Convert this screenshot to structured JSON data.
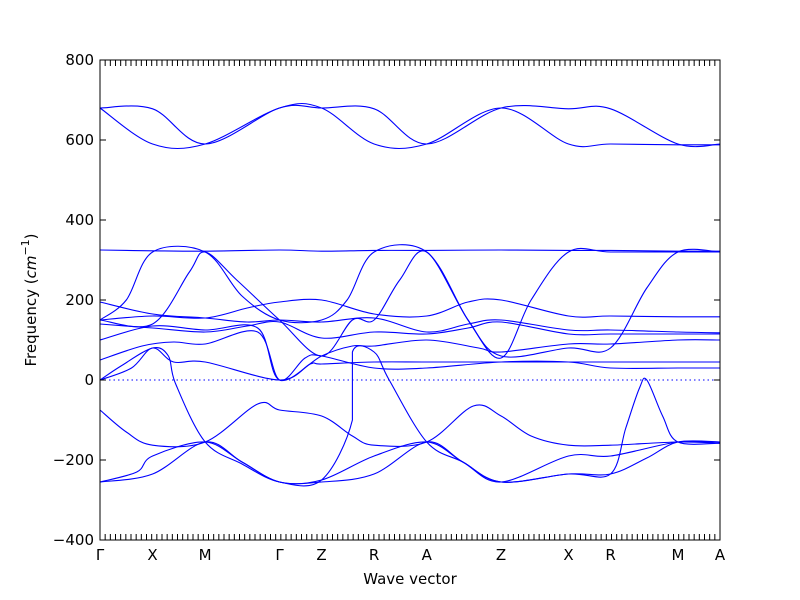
{
  "chart_data": {
    "type": "line",
    "title": "",
    "xlabel": "Wave vector",
    "ylabel": "Frequency ($cm^{-1}$)",
    "ylim": [
      -400,
      800
    ],
    "yticks": [
      -400,
      -200,
      0,
      200,
      400,
      600,
      800
    ],
    "grid": false,
    "series_color": "#0000ff",
    "zero_line": {
      "y": 0,
      "style": "dotted",
      "color": "#0000ff"
    },
    "kpoints": [
      {
        "label": "Γ",
        "x": 0.0
      },
      {
        "label": "X",
        "x": 0.5
      },
      {
        "label": "M",
        "x": 1.0
      },
      {
        "label": "Γ",
        "x": 1.707
      },
      {
        "label": "Z",
        "x": 2.107
      },
      {
        "label": "R",
        "x": 2.607
      },
      {
        "label": "A",
        "x": 3.107
      },
      {
        "label": "Z",
        "x": 3.814
      },
      {
        "label": "X",
        "x": 4.455
      },
      {
        "label": "R",
        "x": 4.855
      },
      {
        "label": "M",
        "x": 5.496
      },
      {
        "label": "A",
        "x": 5.896
      }
    ],
    "series": [
      {
        "values": [
          [
            0,
            -255
          ],
          [
            0.5,
            -235
          ],
          [
            1.0,
            -155
          ],
          [
            1.35,
            -205
          ],
          [
            1.707,
            -255
          ],
          [
            2.107,
            -255
          ],
          [
            2.607,
            -235
          ],
          [
            3.107,
            -155
          ],
          [
            3.45,
            -205
          ],
          [
            3.814,
            -255
          ],
          [
            4.455,
            -235
          ],
          [
            4.855,
            -235
          ],
          [
            5.2,
            -195
          ],
          [
            5.496,
            -155
          ],
          [
            5.896,
            -155
          ]
        ]
      },
      {
        "values": [
          [
            0,
            -255
          ],
          [
            0.35,
            -230
          ],
          [
            0.5,
            -190
          ],
          [
            1.0,
            -155
          ],
          [
            1.35,
            -205
          ],
          [
            1.707,
            -255
          ],
          [
            2.107,
            -250
          ],
          [
            2.607,
            -190
          ],
          [
            3.107,
            -155
          ],
          [
            3.45,
            -205
          ],
          [
            3.814,
            -255
          ],
          [
            4.455,
            -190
          ],
          [
            4.855,
            -190
          ],
          [
            5.496,
            -155
          ],
          [
            5.896,
            -158
          ]
        ]
      },
      {
        "values": [
          [
            0,
            -75
          ],
          [
            0.25,
            -130
          ],
          [
            0.5,
            -163
          ],
          [
            1.0,
            -155
          ],
          [
            1.5,
            -60
          ],
          [
            1.707,
            -75
          ],
          [
            2.107,
            -90
          ],
          [
            2.4,
            -140
          ],
          [
            2.607,
            -163
          ],
          [
            3.107,
            -155
          ],
          [
            3.55,
            -65
          ],
          [
            3.814,
            -90
          ],
          [
            4.1,
            -140
          ],
          [
            4.455,
            -163
          ],
          [
            4.855,
            -163
          ],
          [
            5.496,
            -155
          ],
          [
            5.896,
            -158
          ]
        ]
      },
      {
        "values": [
          [
            0,
            0
          ],
          [
            0.2,
            35
          ],
          [
            0.5,
            80
          ],
          [
            0.65,
            60
          ],
          [
            0.72,
            -10
          ],
          [
            1.0,
            -155
          ],
          [
            1.35,
            -210
          ],
          [
            1.707,
            -255
          ],
          [
            2.107,
            -250
          ],
          [
            2.4,
            -100
          ],
          [
            2.4,
            70
          ],
          [
            2.607,
            70
          ],
          [
            2.75,
            0
          ],
          [
            3.107,
            -155
          ],
          [
            3.45,
            -205
          ],
          [
            3.814,
            -255
          ],
          [
            4.455,
            -235
          ],
          [
            4.855,
            -235
          ],
          [
            5.0,
            -120
          ],
          [
            5.13,
            -20
          ],
          [
            5.2,
            0
          ],
          [
            5.35,
            -90
          ],
          [
            5.496,
            -155
          ],
          [
            5.896,
            -158
          ]
        ]
      },
      {
        "values": [
          [
            0,
            0
          ],
          [
            0.3,
            30
          ],
          [
            0.5,
            80
          ],
          [
            0.7,
            45
          ],
          [
            1.0,
            45
          ],
          [
            1.707,
            0
          ],
          [
            2.0,
            40
          ],
          [
            2.107,
            40
          ],
          [
            2.607,
            45
          ],
          [
            3.107,
            45
          ],
          [
            3.814,
            45
          ],
          [
            4.455,
            45
          ],
          [
            4.855,
            45
          ],
          [
            5.496,
            45
          ],
          [
            5.896,
            45
          ]
        ]
      },
      {
        "values": [
          [
            0,
            50
          ],
          [
            0.4,
            85
          ],
          [
            0.7,
            95
          ],
          [
            1.0,
            90
          ],
          [
            1.5,
            120
          ],
          [
            1.707,
            0
          ],
          [
            1.95,
            55
          ],
          [
            2.107,
            60
          ],
          [
            2.607,
            30
          ],
          [
            3.107,
            30
          ],
          [
            3.814,
            45
          ],
          [
            4.455,
            45
          ],
          [
            4.855,
            30
          ],
          [
            5.496,
            30
          ],
          [
            5.896,
            30
          ]
        ]
      },
      {
        "values": [
          [
            0,
            100
          ],
          [
            0.5,
            135
          ],
          [
            1.0,
            125
          ],
          [
            1.5,
            130
          ],
          [
            1.707,
            0
          ],
          [
            2.107,
            60
          ],
          [
            2.4,
            85
          ],
          [
            2.607,
            85
          ],
          [
            3.107,
            100
          ],
          [
            3.6,
            80
          ],
          [
            3.814,
            70
          ],
          [
            4.455,
            90
          ],
          [
            4.855,
            90
          ],
          [
            5.496,
            100
          ],
          [
            5.896,
            100
          ]
        ]
      },
      {
        "values": [
          [
            0,
            140
          ],
          [
            0.5,
            130
          ],
          [
            1.0,
            120
          ],
          [
            1.4,
            135
          ],
          [
            1.707,
            145
          ],
          [
            2.107,
            105
          ],
          [
            2.607,
            120
          ],
          [
            3.107,
            115
          ],
          [
            3.5,
            130
          ],
          [
            3.814,
            145
          ],
          [
            4.455,
            115
          ],
          [
            4.855,
            115
          ],
          [
            5.496,
            115
          ],
          [
            5.896,
            115
          ]
        ]
      },
      {
        "values": [
          [
            0,
            150
          ],
          [
            0.5,
            160
          ],
          [
            1.0,
            155
          ],
          [
            1.4,
            180
          ],
          [
            1.707,
            195
          ],
          [
            2.107,
            200
          ],
          [
            2.607,
            165
          ],
          [
            3.107,
            160
          ],
          [
            3.5,
            195
          ],
          [
            3.814,
            200
          ],
          [
            4.455,
            160
          ],
          [
            4.855,
            160
          ],
          [
            5.496,
            158
          ],
          [
            5.896,
            158
          ]
        ]
      },
      {
        "values": [
          [
            0,
            195
          ],
          [
            0.5,
            165
          ],
          [
            1.0,
            155
          ],
          [
            1.4,
            145
          ],
          [
            1.707,
            150
          ],
          [
            2.107,
            145
          ],
          [
            2.607,
            155
          ],
          [
            3.107,
            120
          ],
          [
            3.5,
            140
          ],
          [
            3.814,
            150
          ],
          [
            4.455,
            125
          ],
          [
            4.855,
            125
          ],
          [
            5.496,
            120
          ],
          [
            5.896,
            118
          ]
        ]
      },
      {
        "values": [
          [
            0,
            150
          ],
          [
            0.25,
            200
          ],
          [
            0.5,
            320
          ],
          [
            1.0,
            320
          ],
          [
            1.35,
            210
          ],
          [
            1.707,
            150
          ],
          [
            2.107,
            150
          ],
          [
            2.35,
            200
          ],
          [
            2.607,
            320
          ],
          [
            3.107,
            320
          ],
          [
            3.5,
            150
          ],
          [
            3.814,
            55
          ],
          [
            4.1,
            200
          ],
          [
            4.455,
            320
          ],
          [
            4.855,
            320
          ],
          [
            5.496,
            320
          ],
          [
            5.896,
            320
          ]
        ]
      },
      {
        "values": [
          [
            0,
            150
          ],
          [
            0.5,
            140
          ],
          [
            0.85,
            270
          ],
          [
            1.0,
            320
          ],
          [
            1.3,
            250
          ],
          [
            1.707,
            150
          ],
          [
            2.107,
            60
          ],
          [
            2.4,
            150
          ],
          [
            2.607,
            150
          ],
          [
            2.85,
            250
          ],
          [
            3.107,
            320
          ],
          [
            3.5,
            150
          ],
          [
            3.814,
            60
          ],
          [
            4.455,
            80
          ],
          [
            4.855,
            80
          ],
          [
            5.2,
            230
          ],
          [
            5.496,
            320
          ],
          [
            5.896,
            320
          ]
        ]
      },
      {
        "values": [
          [
            0,
            325
          ],
          [
            0.5,
            323
          ],
          [
            1.0,
            322
          ],
          [
            1.707,
            325
          ],
          [
            2.107,
            322
          ],
          [
            2.607,
            324
          ],
          [
            3.107,
            324
          ],
          [
            3.814,
            325
          ],
          [
            4.455,
            324
          ],
          [
            4.855,
            324
          ],
          [
            5.496,
            322
          ],
          [
            5.896,
            322
          ]
        ]
      },
      {
        "values": [
          [
            0,
            680
          ],
          [
            0.5,
            678
          ],
          [
            1.0,
            590
          ],
          [
            1.707,
            680
          ],
          [
            2.107,
            680
          ],
          [
            2.607,
            678
          ],
          [
            3.107,
            590
          ],
          [
            3.814,
            680
          ],
          [
            4.455,
            678
          ],
          [
            4.855,
            678
          ],
          [
            5.496,
            590
          ],
          [
            5.896,
            590
          ]
        ]
      },
      {
        "values": [
          [
            0,
            680
          ],
          [
            0.5,
            590
          ],
          [
            1.0,
            590
          ],
          [
            1.707,
            680
          ],
          [
            2.107,
            680
          ],
          [
            2.607,
            590
          ],
          [
            3.107,
            590
          ],
          [
            3.814,
            680
          ],
          [
            4.455,
            590
          ],
          [
            4.855,
            590
          ],
          [
            5.496,
            588
          ],
          [
            5.896,
            588
          ]
        ]
      }
    ]
  }
}
